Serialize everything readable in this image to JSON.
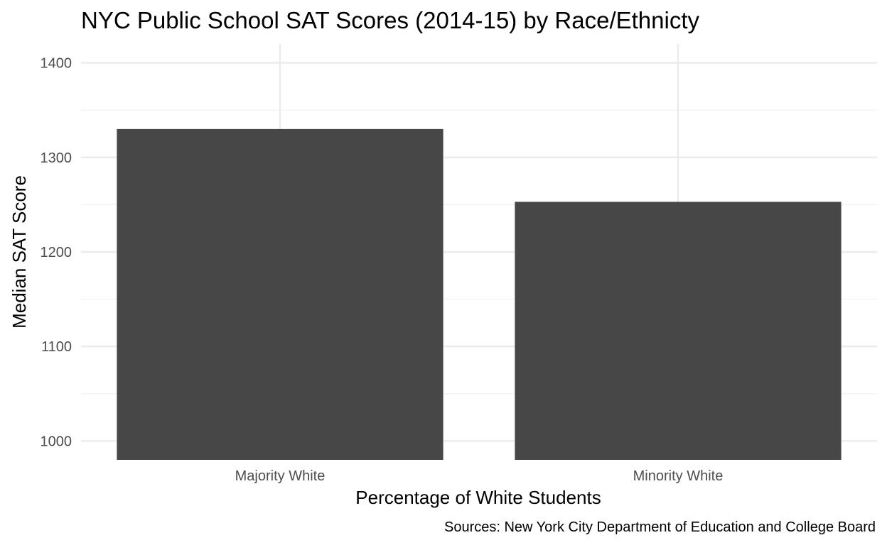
{
  "chart_data": {
    "type": "bar",
    "title": "NYC Public School SAT Scores (2014-15) by Race/Ethnicty",
    "xlabel": "Percentage of White Students",
    "ylabel": "Median SAT Score",
    "caption": "Sources: New York City Department of Education and College Board",
    "categories": [
      "Majority White",
      "Minority White"
    ],
    "values": [
      1330,
      1253
    ],
    "ylim": [
      980,
      1420
    ],
    "yticks": [
      1000,
      1100,
      1200,
      1300,
      1400
    ],
    "ytick_labels": [
      "1000",
      "1100",
      "1200",
      "1300",
      "1400"
    ],
    "grid": true,
    "legend": "none",
    "bar_color": "#474747",
    "grid_major_color": "#ebebeb",
    "grid_minor_color": "#f2f2f2"
  }
}
